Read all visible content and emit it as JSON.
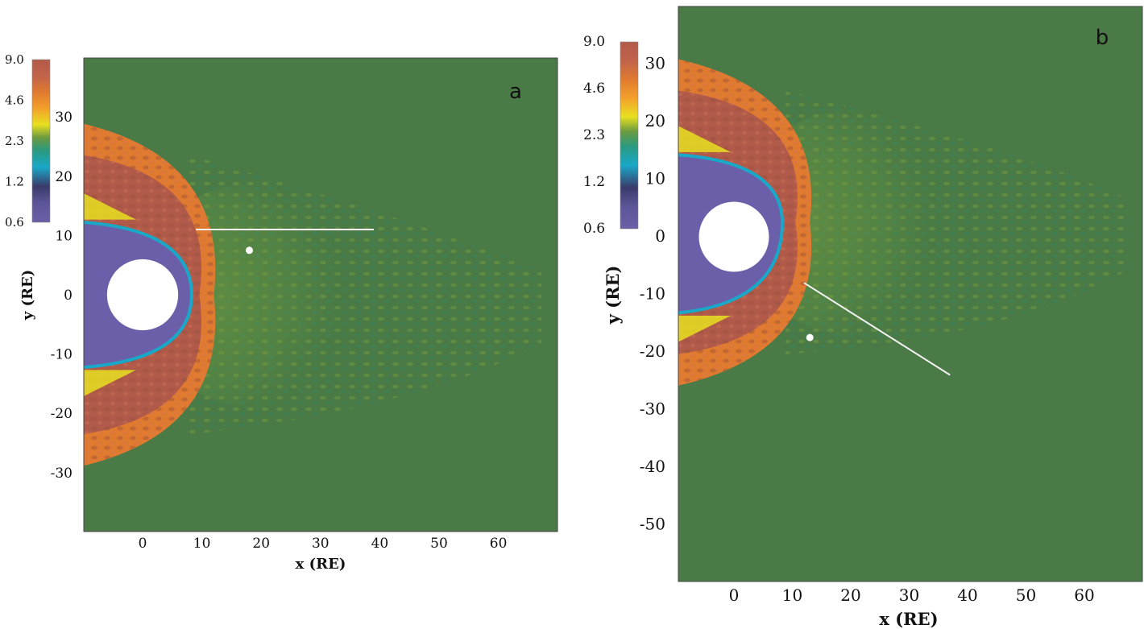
{
  "chart_data": [
    {
      "type": "heatmap",
      "panel_label": "a",
      "xlabel": "x (RE)",
      "ylabel": "y (RE)",
      "x_ticks": [
        0,
        10,
        20,
        30,
        40,
        50,
        60
      ],
      "y_ticks": [
        30,
        20,
        10,
        0,
        -10,
        -20,
        -30
      ],
      "xlim": [
        -10,
        70
      ],
      "ylim": [
        -40,
        40
      ],
      "colorbar": {
        "labels": [
          "9.0",
          "4.6",
          "2.3",
          "1.2",
          "0.6"
        ],
        "scale": "log"
      },
      "background_color": "#4a7a45",
      "colors": [
        "#6a5fa8",
        "#3a3a6a",
        "#19a8c8",
        "#6a9a40",
        "#e8e020",
        "#f3a02a",
        "#e07a30",
        "#c0634a",
        "#b25a4a"
      ],
      "inner_body": {
        "shape": "circle",
        "center": [
          0,
          0
        ],
        "radius": 6,
        "color": "#ffffff"
      },
      "bow_shock": {
        "nose_x": 12,
        "flank_y_at_left": [
          -29,
          29
        ]
      },
      "cavity": {
        "nose_x": 8,
        "flank_y_at_left": [
          -12,
          12
        ]
      },
      "line_segment": {
        "from": [
          9,
          11
        ],
        "to": [
          39,
          11
        ]
      },
      "marker_point": [
        18,
        7.5
      ]
    },
    {
      "type": "heatmap",
      "panel_label": "b",
      "xlabel": "x (RE)",
      "ylabel": "y (RE)",
      "x_ticks": [
        0,
        10,
        20,
        30,
        40,
        50,
        60
      ],
      "y_ticks": [
        30,
        20,
        10,
        0,
        -10,
        -20,
        -30,
        -40,
        -50
      ],
      "xlim": [
        -10,
        70
      ],
      "ylim": [
        -60,
        40
      ],
      "colorbar": {
        "labels": [
          "9.0",
          "4.6",
          "2.3",
          "1.2",
          "0.6"
        ],
        "scale": "log"
      },
      "background_color": "#4a7a45",
      "colors": [
        "#6a5fa8",
        "#3a3a6a",
        "#19a8c8",
        "#6a9a40",
        "#e8e020",
        "#f3a02a",
        "#e07a30",
        "#c0634a",
        "#b25a4a"
      ],
      "inner_body": {
        "shape": "circle",
        "center": [
          0,
          0
        ],
        "radius": 6,
        "color": "#ffffff"
      },
      "bow_shock": {
        "nose_x": 13,
        "flank_y_at_left": [
          -26,
          31
        ]
      },
      "cavity": {
        "nose_x": 8,
        "flank_y_at_left": [
          -13,
          14
        ]
      },
      "line_segment": {
        "from": [
          12,
          -8
        ],
        "to": [
          37,
          -24
        ]
      },
      "marker_point": [
        13,
        -17.5
      ]
    }
  ]
}
